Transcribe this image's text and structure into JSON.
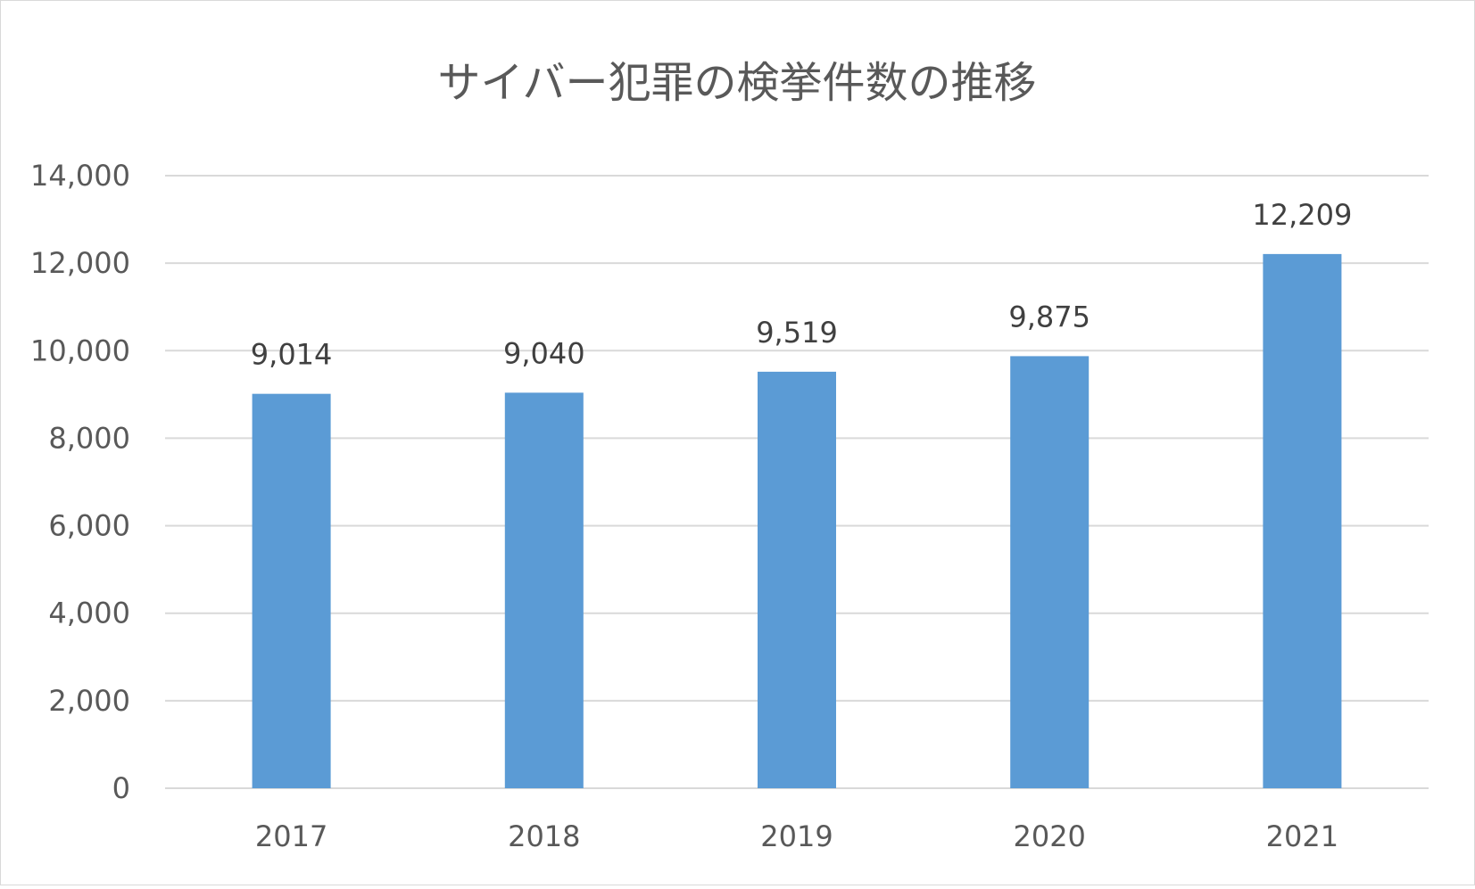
{
  "chart_data": {
    "type": "bar",
    "title": "サイバー犯罪の検挙件数の推移",
    "categories": [
      "2017",
      "2018",
      "2019",
      "2020",
      "2021"
    ],
    "values": [
      9014,
      9040,
      9519,
      9875,
      12209
    ],
    "value_labels": [
      "9,014",
      "9,040",
      "9,519",
      "9,875",
      "12,209"
    ],
    "y_ticks": [
      "0",
      "2,000",
      "4,000",
      "6,000",
      "8,000",
      "10,000",
      "12,000",
      "14,000"
    ],
    "ylim": [
      0,
      14000
    ],
    "xlabel": "",
    "ylabel": "",
    "grid": true,
    "legend": "none",
    "bar_color": "#5b9bd5"
  }
}
